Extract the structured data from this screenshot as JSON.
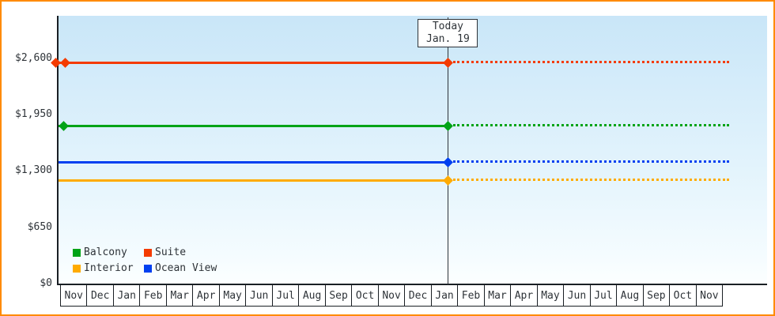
{
  "chart": {
    "frame_border_color": "#ff8a00",
    "plot_background_top": "#c9e6f8",
    "plot_background_bottom": "#fcffff",
    "axis_color": "#1a1f24",
    "text_color": "#2e3338"
  },
  "chart_data": {
    "type": "line",
    "x_categories": [
      "Nov",
      "Dec",
      "Jan",
      "Feb",
      "Mar",
      "Apr",
      "May",
      "Jun",
      "Jul",
      "Aug",
      "Sep",
      "Oct",
      "Nov",
      "Dec",
      "Jan",
      "Feb",
      "Mar",
      "Apr",
      "May",
      "Jun",
      "Jul",
      "Aug",
      "Sep",
      "Oct",
      "Nov"
    ],
    "ylim": [
      0,
      3100
    ],
    "y_ticks": [
      {
        "value": 0,
        "label": "$0"
      },
      {
        "value": 650,
        "label": "$650"
      },
      {
        "value": 1300,
        "label": "$1,300"
      },
      {
        "value": 1950,
        "label": "$1,950"
      },
      {
        "value": 2600,
        "label": "$2,600"
      }
    ],
    "today": {
      "label": "Today",
      "date": "Jan. 19",
      "month_index": 14.61
    },
    "series": [
      {
        "name": "Suite",
        "color": "#f43b00",
        "value": 2560,
        "marker_month_indices": [
          -0.2,
          0.15,
          14.61
        ]
      },
      {
        "name": "Balcony",
        "color": "#00a316",
        "value": 1830,
        "marker_month_indices": [
          0.1,
          14.61
        ]
      },
      {
        "name": "Ocean View",
        "color": "#0040f0",
        "value": 1410,
        "marker_month_indices": [
          14.61
        ]
      },
      {
        "name": "Interior",
        "color": "#ffab00",
        "value": 1200,
        "marker_month_indices": [
          14.61
        ]
      }
    ],
    "legend_rows": [
      [
        "Balcony",
        "Suite"
      ],
      [
        "Interior",
        "Ocean View"
      ]
    ],
    "legend_position": "bottom-left",
    "grid": false
  }
}
